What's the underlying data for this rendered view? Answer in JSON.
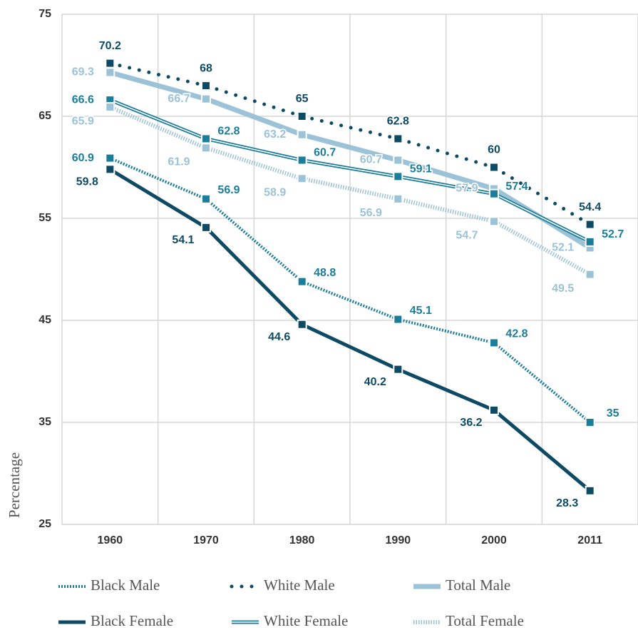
{
  "chart_data": {
    "type": "line",
    "y_axis_label": "Percentage",
    "categories": [
      "1960",
      "1970",
      "1980",
      "1990",
      "2000",
      "2011"
    ],
    "ylim": [
      25,
      75
    ],
    "yticks": [
      25,
      35,
      45,
      55,
      65,
      75
    ],
    "grid": true,
    "series": [
      {
        "name": "Black Male",
        "color": "#1b7d99",
        "style": "zigzag",
        "values": [
          60.9,
          56.9,
          48.8,
          45.1,
          42.8,
          35.0
        ]
      },
      {
        "name": "White Male",
        "color": "#0e4a64",
        "style": "dotted",
        "values": [
          70.2,
          68.0,
          65.0,
          62.8,
          60.0,
          54.4
        ]
      },
      {
        "name": "Total Male",
        "color": "#9cc2d7",
        "style": "thick",
        "values": [
          69.3,
          66.7,
          63.2,
          60.7,
          57.9,
          52.1
        ]
      },
      {
        "name": "Black Female",
        "color": "#0e4a64",
        "style": "thick",
        "values": [
          59.8,
          54.1,
          44.6,
          40.2,
          36.2,
          28.3
        ]
      },
      {
        "name": "White Female",
        "color": "#1b7d99",
        "style": "double",
        "values": [
          66.6,
          62.8,
          60.7,
          59.1,
          57.4,
          52.7
        ]
      },
      {
        "name": "Total Female",
        "color": "#9cc2d7",
        "style": "hatched",
        "values": [
          65.9,
          61.9,
          58.9,
          56.9,
          54.7,
          49.5
        ]
      }
    ]
  }
}
